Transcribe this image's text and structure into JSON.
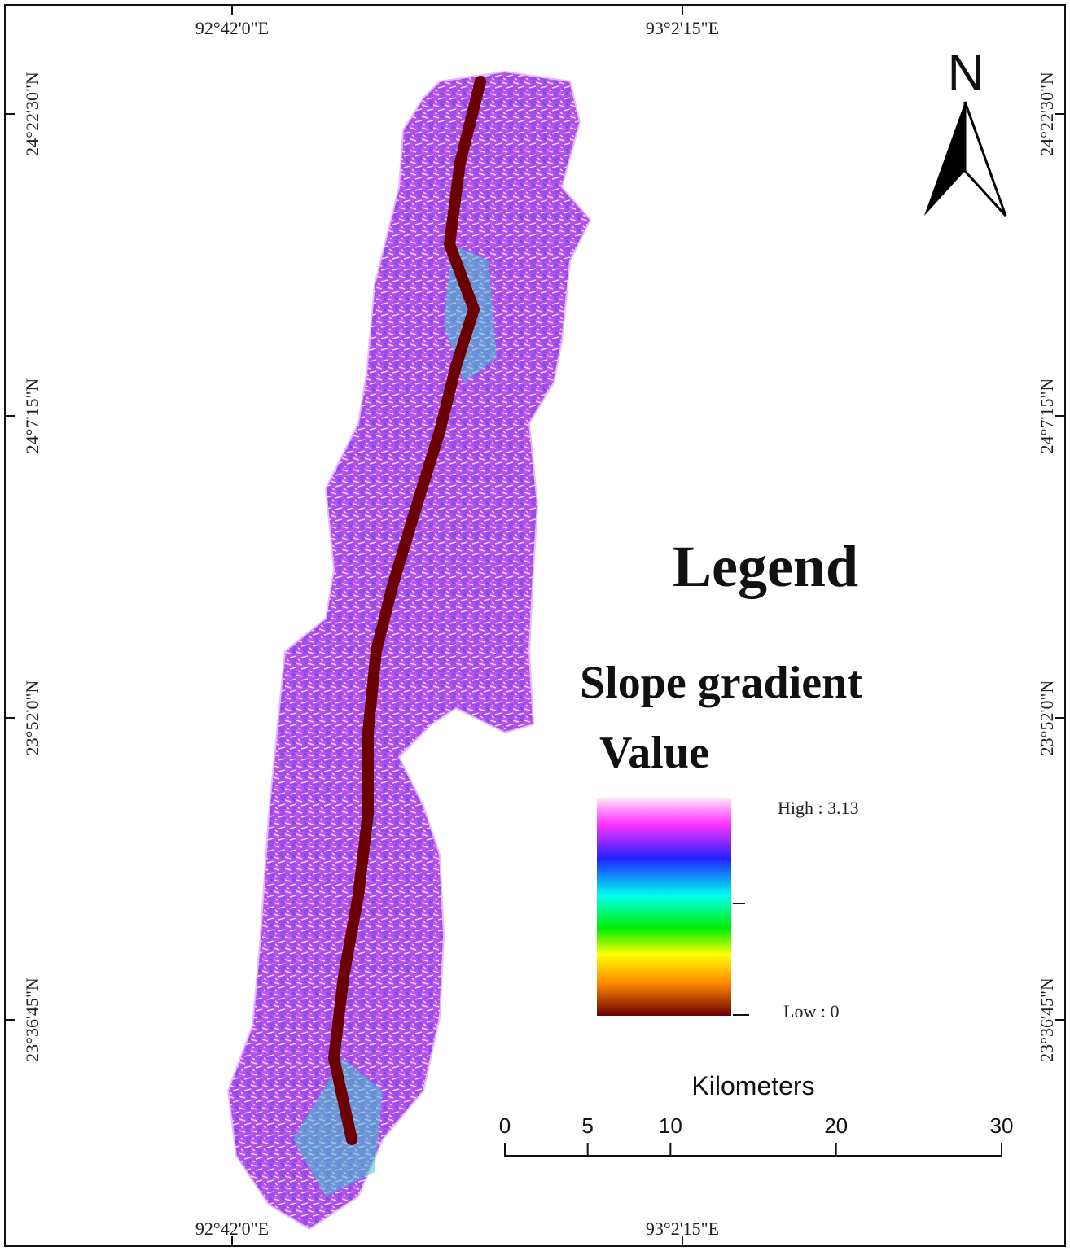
{
  "map": {
    "x_labels": [
      "92°42'0\"E",
      "93°2'15\"E"
    ],
    "y_labels": [
      "24°22'30\"N",
      "24°7'15\"N",
      "23°52'0\"N",
      "23°36'45\"N"
    ],
    "north": "N",
    "legend": {
      "title": "Legend",
      "subtitle": "Slope gradient",
      "field": "Value",
      "high": "High : 3.13",
      "low": "Low : 0"
    },
    "scale_bar": {
      "unit": "Kilometers",
      "ticks": [
        0,
        5,
        10,
        20,
        30
      ]
    }
  }
}
